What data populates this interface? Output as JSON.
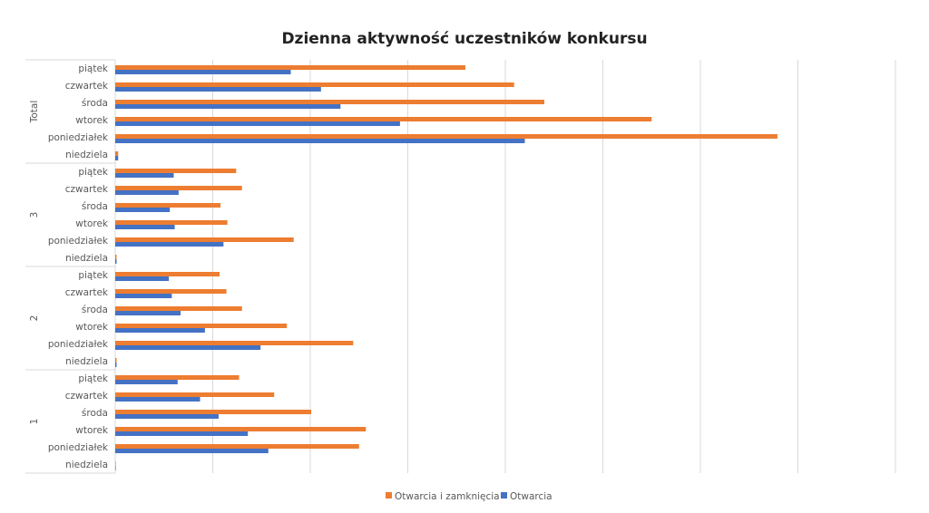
{
  "chart_data": {
    "type": "bar",
    "orientation": "horizontal",
    "title": "Dzienna aktywność uczestników konkursu",
    "xlabel": "",
    "ylabel": "",
    "value_units": "gridline intervals (axis tick labels not shown)",
    "xlim": [
      0,
      8
    ],
    "grid": true,
    "legend_position": "bottom",
    "series_names": [
      "Otwarcia i zamknięcia",
      "Otwarcia"
    ],
    "colors": {
      "Otwarcia i zamknięcia": "#ED7D31",
      "Otwarcia": "#4472C4"
    },
    "groups": [
      {
        "name": "Total",
        "categories": [
          "piątek",
          "czwartek",
          "środa",
          "wtorek",
          "poniedziałek",
          "niedziela"
        ],
        "series": [
          {
            "name": "Otwarcia i zamknięcia",
            "values": [
              3.59,
              4.09,
              4.4,
              5.5,
              6.79,
              0.03
            ]
          },
          {
            "name": "Otwarcia",
            "values": [
              1.8,
              2.11,
              2.31,
              2.92,
              4.2,
              0.03
            ]
          }
        ]
      },
      {
        "name": "3",
        "categories": [
          "piątek",
          "czwartek",
          "środa",
          "wtorek",
          "poniedziałek",
          "niedziela"
        ],
        "series": [
          {
            "name": "Otwarcia i zamknięcia",
            "values": [
              1.24,
              1.3,
              1.08,
              1.15,
              1.83,
              0.01
            ]
          },
          {
            "name": "Otwarcia",
            "values": [
              0.6,
              0.65,
              0.56,
              0.61,
              1.11,
              0.01
            ]
          }
        ]
      },
      {
        "name": "2",
        "categories": [
          "piątek",
          "czwartek",
          "środa",
          "wtorek",
          "poniedziałek",
          "niedziela"
        ],
        "series": [
          {
            "name": "Otwarcia i zamknięcia",
            "values": [
              1.07,
              1.14,
              1.3,
              1.76,
              2.44,
              0.01
            ]
          },
          {
            "name": "Otwarcia",
            "values": [
              0.55,
              0.58,
              0.67,
              0.92,
              1.49,
              0.01
            ]
          }
        ]
      },
      {
        "name": "1",
        "categories": [
          "piątek",
          "czwartek",
          "środa",
          "wtorek",
          "poniedziałek",
          "niedziela"
        ],
        "series": [
          {
            "name": "Otwarcia i zamknięcia",
            "values": [
              1.27,
              1.63,
              2.01,
              2.57,
              2.5,
              0.0
            ]
          },
          {
            "name": "Otwarcia",
            "values": [
              0.64,
              0.87,
              1.06,
              1.36,
              1.57,
              0.0
            ]
          }
        ]
      }
    ]
  }
}
